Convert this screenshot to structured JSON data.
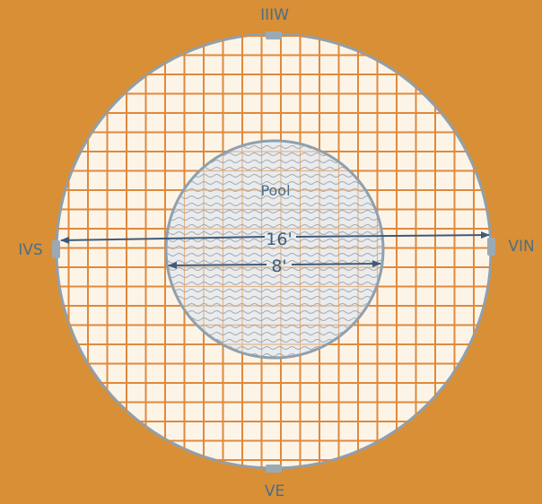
{
  "colors": {
    "background": "#d98f35",
    "outer_fill": "#fdf4e8",
    "grid_line": "#de8a3c",
    "circle_outline": "#8fa0ad",
    "pool_fill": "#e9ebed",
    "wave": "#a3a9ae",
    "arrow": "#3f5a79",
    "tab": "#9aaab5"
  },
  "labels": {
    "top": "IIIW",
    "bottom": "VE",
    "left": "IVS",
    "right": "VIN",
    "pool": "Pool",
    "outer_diameter": "16'",
    "inner_diameter": "8'"
  },
  "icons": {
    "tab_marker": "tab-marker-icon",
    "arrowhead": "arrowhead-icon"
  }
}
